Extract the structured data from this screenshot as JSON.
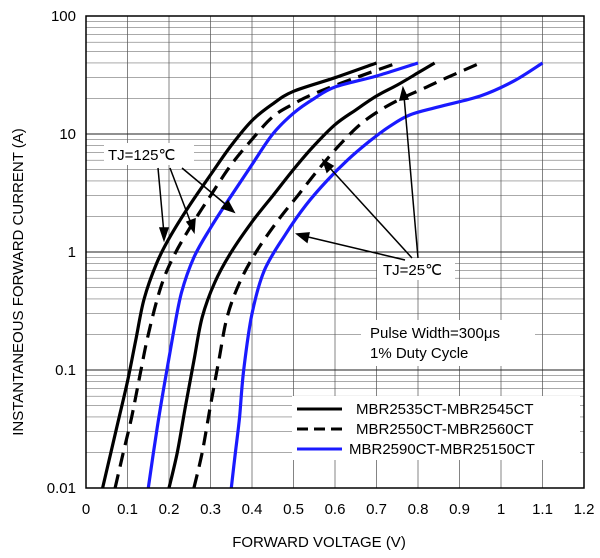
{
  "chart_data": {
    "type": "line",
    "xlabel": "FORWARD VOLTAGE (V)",
    "ylabel": "INSTANTANEOUS FORWARD CURRENT (A)",
    "xlim": [
      0,
      1.2
    ],
    "ylim": [
      0.01,
      100
    ],
    "y_scale": "log",
    "grid": true,
    "x_ticks": [
      "0",
      "0.1",
      "0.2",
      "0.3",
      "0.4",
      "0.5",
      "0.6",
      "0.7",
      "0.8",
      "0.9",
      "1",
      "1.1",
      "1.2"
    ],
    "y_ticks": [
      "0.01",
      "0.1",
      "1",
      "10",
      "100"
    ],
    "legend": {
      "placement": "bottom-right",
      "entries": [
        {
          "label": "MBR2535CT-MBR2545CT",
          "color": "#000000",
          "style": "solid"
        },
        {
          "label": "MBR2550CT-MBR2560CT",
          "color": "#000000",
          "style": "dashed"
        },
        {
          "label": "MBR2590CT-MBR25150CT",
          "color": "#1a1aff",
          "style": "solid"
        }
      ]
    },
    "annotations": {
      "tj_hot": "TJ=125℃",
      "tj_cold": "TJ=25℃",
      "pulse_line1": "Pulse Width=300μs",
      "pulse_line2": "1% Duty Cycle"
    },
    "series": [
      {
        "legend_index": 0,
        "condition": "TJ=125℃",
        "x": [
          0.04,
          0.06,
          0.08,
          0.1,
          0.12,
          0.14,
          0.17,
          0.2,
          0.25,
          0.3,
          0.35,
          0.4,
          0.45,
          0.5,
          0.6,
          0.7
        ],
        "y": [
          0.01,
          0.02,
          0.04,
          0.08,
          0.18,
          0.4,
          0.8,
          1.3,
          2.5,
          4.5,
          8,
          13,
          18,
          23,
          30,
          40
        ]
      },
      {
        "legend_index": 1,
        "condition": "TJ=125℃",
        "x": [
          0.07,
          0.09,
          0.11,
          0.13,
          0.15,
          0.18,
          0.21,
          0.25,
          0.3,
          0.35,
          0.4,
          0.45,
          0.5,
          0.55,
          0.65,
          0.75
        ],
        "y": [
          0.01,
          0.02,
          0.04,
          0.09,
          0.2,
          0.5,
          0.9,
          1.6,
          3,
          5.5,
          9,
          14,
          18,
          22,
          30,
          40
        ]
      },
      {
        "legend_index": 2,
        "condition": "TJ=125℃",
        "x": [
          0.15,
          0.17,
          0.19,
          0.21,
          0.23,
          0.26,
          0.3,
          0.35,
          0.4,
          0.45,
          0.5,
          0.55,
          0.6,
          0.7,
          0.8
        ],
        "y": [
          0.01,
          0.03,
          0.08,
          0.2,
          0.45,
          0.9,
          1.6,
          3,
          5.5,
          10,
          15,
          20,
          25,
          31,
          40
        ]
      },
      {
        "legend_index": 0,
        "condition": "TJ=25℃",
        "x": [
          0.2,
          0.22,
          0.24,
          0.26,
          0.28,
          0.31,
          0.35,
          0.4,
          0.45,
          0.5,
          0.55,
          0.6,
          0.65,
          0.7,
          0.75,
          0.8,
          0.84
        ],
        "y": [
          0.01,
          0.02,
          0.05,
          0.12,
          0.28,
          0.55,
          1,
          1.8,
          3,
          5,
          8,
          12,
          16,
          21,
          26,
          33,
          40
        ]
      },
      {
        "legend_index": 1,
        "condition": "TJ=25℃",
        "x": [
          0.26,
          0.28,
          0.3,
          0.32,
          0.34,
          0.37,
          0.41,
          0.46,
          0.51,
          0.56,
          0.61,
          0.66,
          0.71,
          0.76,
          0.81,
          0.86,
          0.95
        ],
        "y": [
          0.01,
          0.02,
          0.05,
          0.12,
          0.28,
          0.55,
          1,
          1.8,
          3,
          5,
          8,
          12,
          16,
          20,
          24,
          29,
          40
        ]
      },
      {
        "legend_index": 2,
        "condition": "TJ=25℃",
        "x": [
          0.35,
          0.36,
          0.37,
          0.38,
          0.4,
          0.43,
          0.48,
          0.53,
          0.58,
          0.63,
          0.68,
          0.73,
          0.78,
          0.85,
          0.95,
          1.03,
          1.1
        ],
        "y": [
          0.01,
          0.02,
          0.04,
          0.1,
          0.3,
          0.7,
          1.4,
          2.5,
          4,
          6,
          8.5,
          11.5,
          14.5,
          17,
          21,
          28,
          40
        ]
      }
    ]
  }
}
